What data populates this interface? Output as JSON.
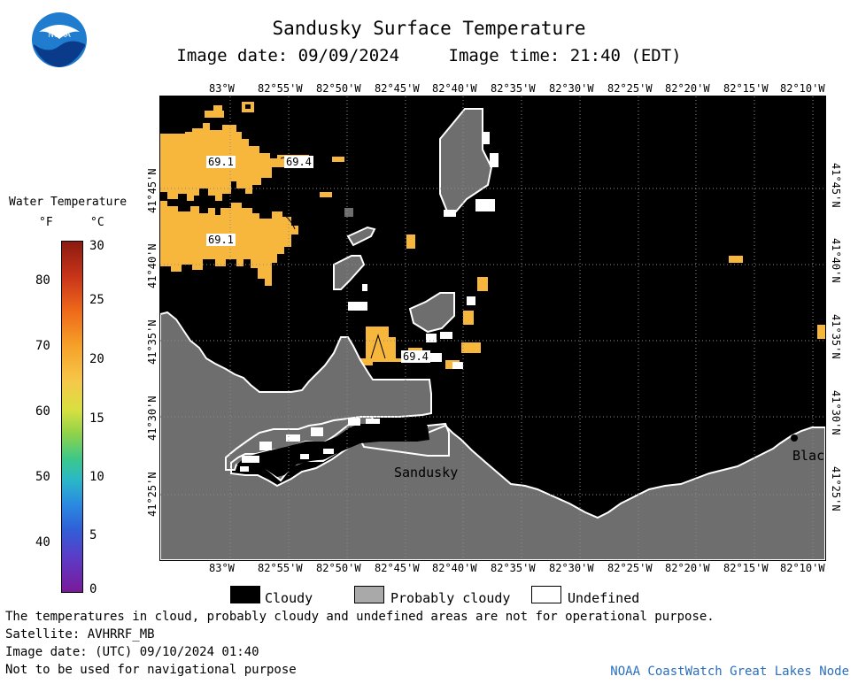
{
  "header": {
    "title": "Sandusky Surface Temperature",
    "image_date": "Image date: 09/09/2024",
    "image_time": "Image time: 21:40 (EDT)"
  },
  "logo": {
    "text": "NOAA",
    "icon": "noaa-logo-icon"
  },
  "colorbar": {
    "title": "Water Temperature",
    "unit_f": "°F",
    "unit_c": "°C",
    "f_ticks": [
      "80",
      "70",
      "60",
      "50",
      "40"
    ],
    "c_ticks": [
      "30",
      "25",
      "20",
      "15",
      "10",
      "5",
      "0"
    ]
  },
  "axes": {
    "lon_ticks": [
      "83°W",
      "82°55'W",
      "82°50'W",
      "82°45'W",
      "82°40'W",
      "82°35'W",
      "82°30'W",
      "82°25'W",
      "82°20'W",
      "82°15'W",
      "82°10'W"
    ],
    "lat_ticks": [
      "41°45'N",
      "41°40'N",
      "41°35'N",
      "41°30'N",
      "41°25'N"
    ]
  },
  "map": {
    "labels": {
      "temp_a": "69.1",
      "temp_b": "69.4",
      "temp_c": "69.1",
      "temp_d": "69.4",
      "city": "Sandusky",
      "city_partial": "Blac"
    },
    "colors": {
      "cloudy": "#000000",
      "probably_cloudy": "#6e6e6e",
      "water_warm": "#f6b73c",
      "undefined": "#ffffff"
    }
  },
  "legend": {
    "cloudy": "Cloudy",
    "probably_cloudy": "Probably cloudy",
    "undefined": "Undefined"
  },
  "footer": {
    "note": "The temperatures in cloud, probably cloudy and undefined areas are not for operational purpose.",
    "satellite": "Satellite: AVHRRF_MB",
    "utc_date": "Image date: (UTC) 09/10/2024  01:40",
    "nav_warning": "Not to be used for navigational purpose",
    "credit": "NOAA CoastWatch Great Lakes Node"
  }
}
